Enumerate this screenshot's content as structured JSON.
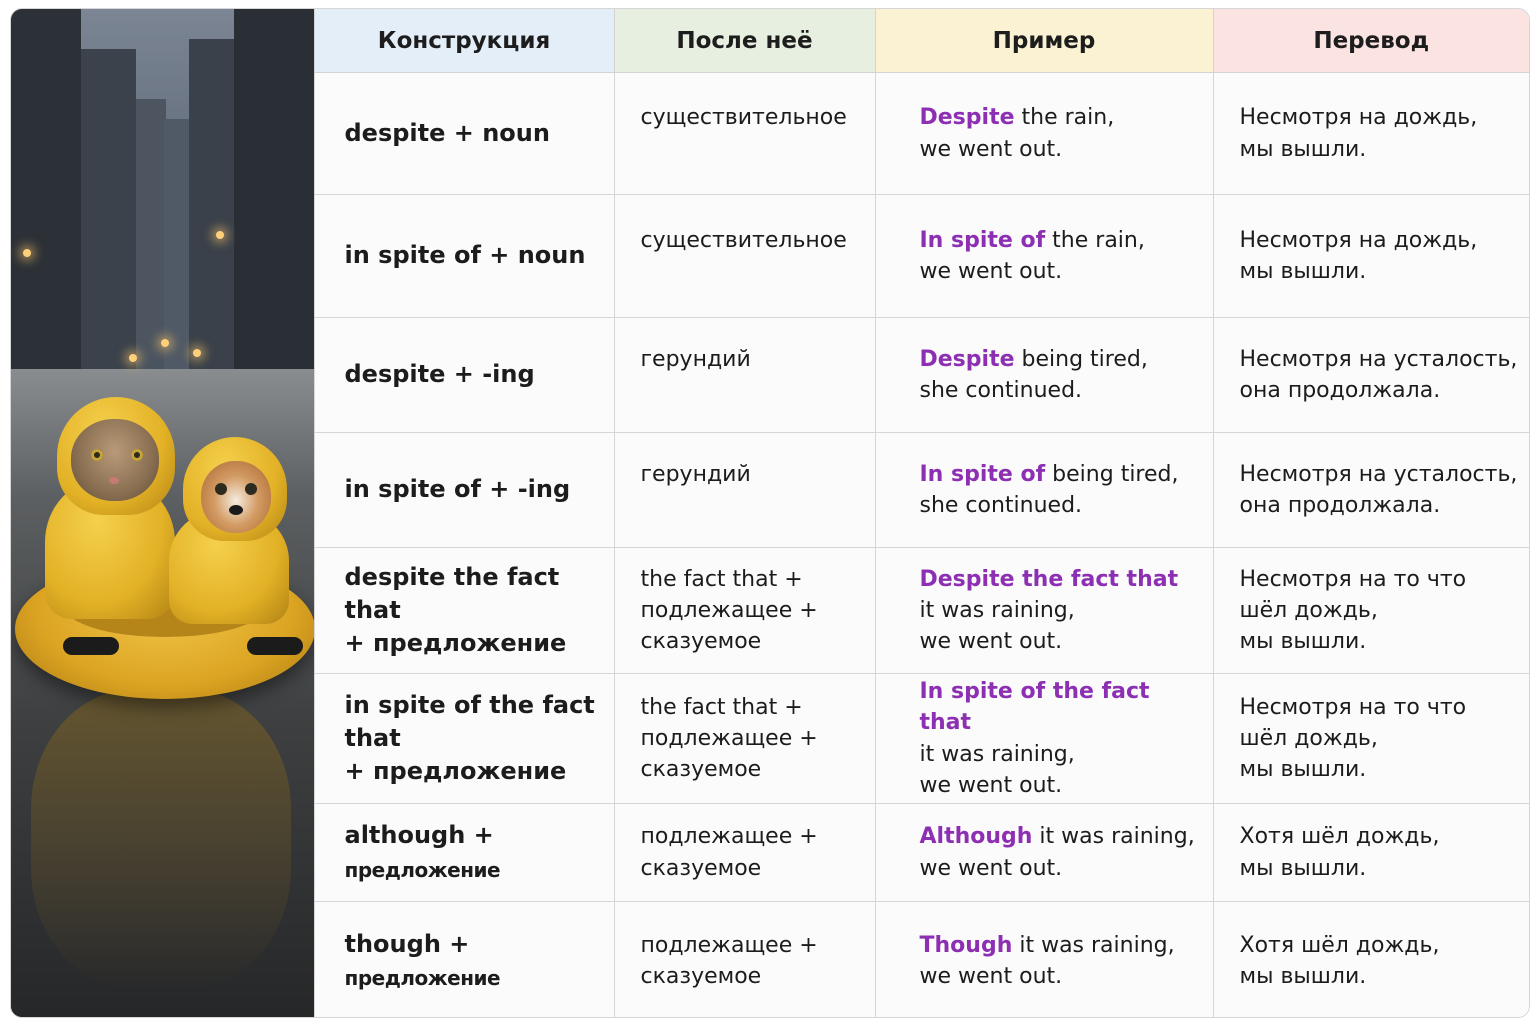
{
  "headers": [
    "Конструкция",
    "После неё",
    "Пример",
    "Перевод"
  ],
  "colors": {
    "highlight": "#8d2fb3",
    "header_blue": "#e3eef8",
    "header_green": "#e6efe0",
    "header_yellow": "#fbf1d3",
    "header_pink": "#fbe3e2"
  },
  "rows": [
    {
      "construction": {
        "line1": "despite + noun",
        "line1_small": "",
        "line2": ""
      },
      "after": [
        "существительное",
        "",
        ""
      ],
      "example": {
        "hl": "Despite",
        "rest": " the rain,",
        "line2": "we went out.",
        "line3": ""
      },
      "translation": [
        "Несмотря на дождь,",
        "мы вышли.",
        ""
      ]
    },
    {
      "construction": {
        "line1": "in spite of + noun",
        "line1_small": "",
        "line2": ""
      },
      "after": [
        "существительное",
        "",
        ""
      ],
      "example": {
        "hl": "In spite of",
        "rest": " the rain,",
        "line2": "we went out.",
        "line3": ""
      },
      "translation": [
        "Несмотря на дождь,",
        "мы вышли.",
        ""
      ]
    },
    {
      "construction": {
        "line1": "despite + -ing",
        "line1_small": "",
        "line2": ""
      },
      "after": [
        "герундий",
        "",
        ""
      ],
      "example": {
        "hl": "Despite",
        "rest": " being tired,",
        "line2": "she continued.",
        "line3": ""
      },
      "translation": [
        "Несмотря на усталость,",
        "она продолжала.",
        ""
      ]
    },
    {
      "construction": {
        "line1": "in spite of + -ing",
        "line1_small": "",
        "line2": ""
      },
      "after": [
        "герундий",
        "",
        ""
      ],
      "example": {
        "hl": "In spite of",
        "rest": " being tired,",
        "line2": "she continued.",
        "line3": ""
      },
      "translation": [
        "Несмотря на усталость,",
        "она продолжала.",
        ""
      ]
    },
    {
      "construction": {
        "line1": "despite the fact that",
        "line1_small": "",
        "line2": "+ предложение"
      },
      "after": [
        "the fact that +",
        "подлежащее +",
        "сказуемое"
      ],
      "example": {
        "hl": "Despite the fact that",
        "rest": "",
        "line2": "it was raining,",
        "line3": "we went out."
      },
      "translation": [
        "Несмотря на то что",
        "шёл дождь,",
        "мы вышли."
      ]
    },
    {
      "construction": {
        "line1": "in spite of the fact that",
        "line1_small": "",
        "line2": "+ предложение"
      },
      "after": [
        "the fact that +",
        "подлежащее +",
        "сказуемое"
      ],
      "example": {
        "hl": "In spite of the fact that",
        "rest": "",
        "line2": "it was raining,",
        "line3": "we went out."
      },
      "translation": [
        "Несмотря на то что",
        "шёл дождь,",
        "мы вышли."
      ]
    },
    {
      "construction": {
        "line1": "although + ",
        "line1_small": "предложение",
        "line2": ""
      },
      "after": [
        "подлежащее +",
        "сказуемое",
        ""
      ],
      "example": {
        "hl": "Although",
        "rest": " it was raining,",
        "line2": "we went out.",
        "line3": ""
      },
      "translation": [
        "Хотя шёл дождь,",
        "мы вышли.",
        ""
      ]
    },
    {
      "construction": {
        "line1": "though + ",
        "line1_small": "предложение",
        "line2": ""
      },
      "after": [
        "подлежащее +",
        "сказуемое",
        ""
      ],
      "example": {
        "hl": "Though",
        "rest": " it was raining,",
        "line2": "we went out.",
        "line3": ""
      },
      "translation": [
        "Хотя шёл дождь,",
        "мы вышли.",
        ""
      ]
    }
  ]
}
